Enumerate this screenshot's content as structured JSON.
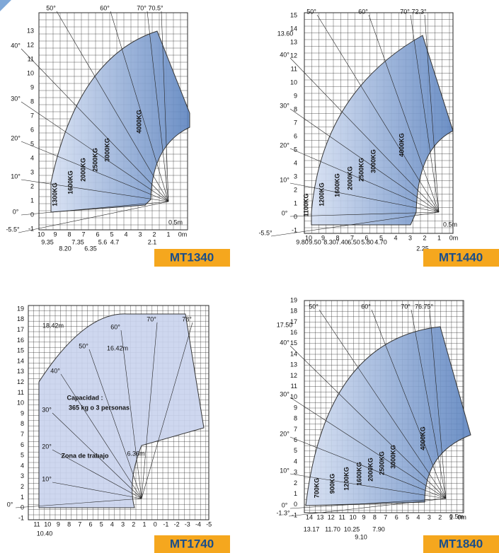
{
  "panels": [
    {
      "model": "MT1340",
      "y_labels": [
        "13",
        "12",
        "11",
        "10",
        "9",
        "8",
        "7",
        "6",
        "5",
        "4",
        "3",
        "2",
        "1",
        "0",
        "-1"
      ],
      "x_labels": [
        "10",
        "9",
        "8",
        "7",
        "6",
        "5",
        "4",
        "3",
        "2",
        "1",
        "0m"
      ],
      "distances": [
        "9.35",
        "8.20",
        "7.35",
        "6.35",
        "5.6",
        "4.7",
        "2.1"
      ],
      "angles": [
        "50°",
        "60°",
        "70°",
        "70.5°",
        "40°",
        "30°",
        "20°",
        "10°",
        "0°",
        "-5.5°"
      ],
      "loads": [
        "1300KG",
        "1600KG",
        "2000KG",
        "2500KG",
        "3000KG",
        "4000KG"
      ],
      "notes": [
        "0.5m"
      ]
    },
    {
      "model": "MT1440",
      "y_labels": [
        "15",
        "14",
        "13",
        "12",
        "11",
        "10",
        "9",
        "8",
        "7",
        "6",
        "5",
        "4",
        "3",
        "2",
        "1",
        "0",
        "-1"
      ],
      "x_labels": [
        "10",
        "9",
        "8",
        "7",
        "6",
        "5",
        "4",
        "3",
        "2",
        "1",
        "0m"
      ],
      "distances": [
        "9.80",
        "9.50",
        "8.30",
        "7.40",
        "6.50",
        "5.80",
        "4.70",
        "2.25"
      ],
      "angles": [
        "50°",
        "60°",
        "70°",
        "72.3°",
        "40°",
        "30°",
        "20°",
        "10°",
        "0°",
        "-5.5°"
      ],
      "loads": [
        "1100KG",
        "1200KG",
        "1600KG",
        "2000KG",
        "2500KG",
        "3000KG",
        "4000KG"
      ],
      "notes": [
        "13.60",
        "0.5m"
      ]
    },
    {
      "model": "MT1740",
      "y_labels": [
        "19",
        "18",
        "17",
        "16",
        "15",
        "14",
        "13",
        "12",
        "11",
        "10",
        "9",
        "8",
        "7",
        "6",
        "5",
        "4",
        "3",
        "2",
        "1",
        "0",
        "-1"
      ],
      "x_labels": [
        "11",
        "10",
        "9",
        "8",
        "7",
        "6",
        "5",
        "4",
        "3",
        "2",
        "1",
        "0",
        "-1",
        "-2",
        "-3",
        "-4",
        "-5"
      ],
      "distances": [
        "10.40"
      ],
      "angles": [
        "78°",
        "70°",
        "60°",
        "50°",
        "40°",
        "30°",
        "20°",
        "10°",
        "0°"
      ],
      "loads": [],
      "notes": [
        "18.42m",
        "16.42m",
        "6.36m",
        "Capacidad :",
        "365 kg o 3 personas",
        "Zona  de trabajo"
      ]
    },
    {
      "model": "MT1840",
      "y_labels": [
        "19",
        "18",
        "17",
        "16",
        "15",
        "14",
        "13",
        "12",
        "11",
        "10",
        "9",
        "8",
        "7",
        "6",
        "5",
        "4",
        "3",
        "2",
        "1",
        "0",
        "-1"
      ],
      "x_labels": [
        "14",
        "13",
        "12",
        "11",
        "10",
        "9",
        "8",
        "7",
        "6",
        "5",
        "4",
        "3",
        "2",
        "1",
        "0m"
      ],
      "distances": [
        "13.17",
        "11.70",
        "10.25",
        "9.10",
        "7.90"
      ],
      "angles": [
        "50°",
        "60°",
        "70°",
        "76.75°",
        "40°",
        "30°",
        "20°",
        "10°",
        "0°",
        "-1.3°"
      ],
      "loads": [
        "700KG",
        "900KG",
        "1200KG",
        "1600KG",
        "2000KG",
        "2500KG",
        "3000KG",
        "4000KG"
      ],
      "notes": [
        "17.50",
        "0.5m"
      ]
    }
  ]
}
